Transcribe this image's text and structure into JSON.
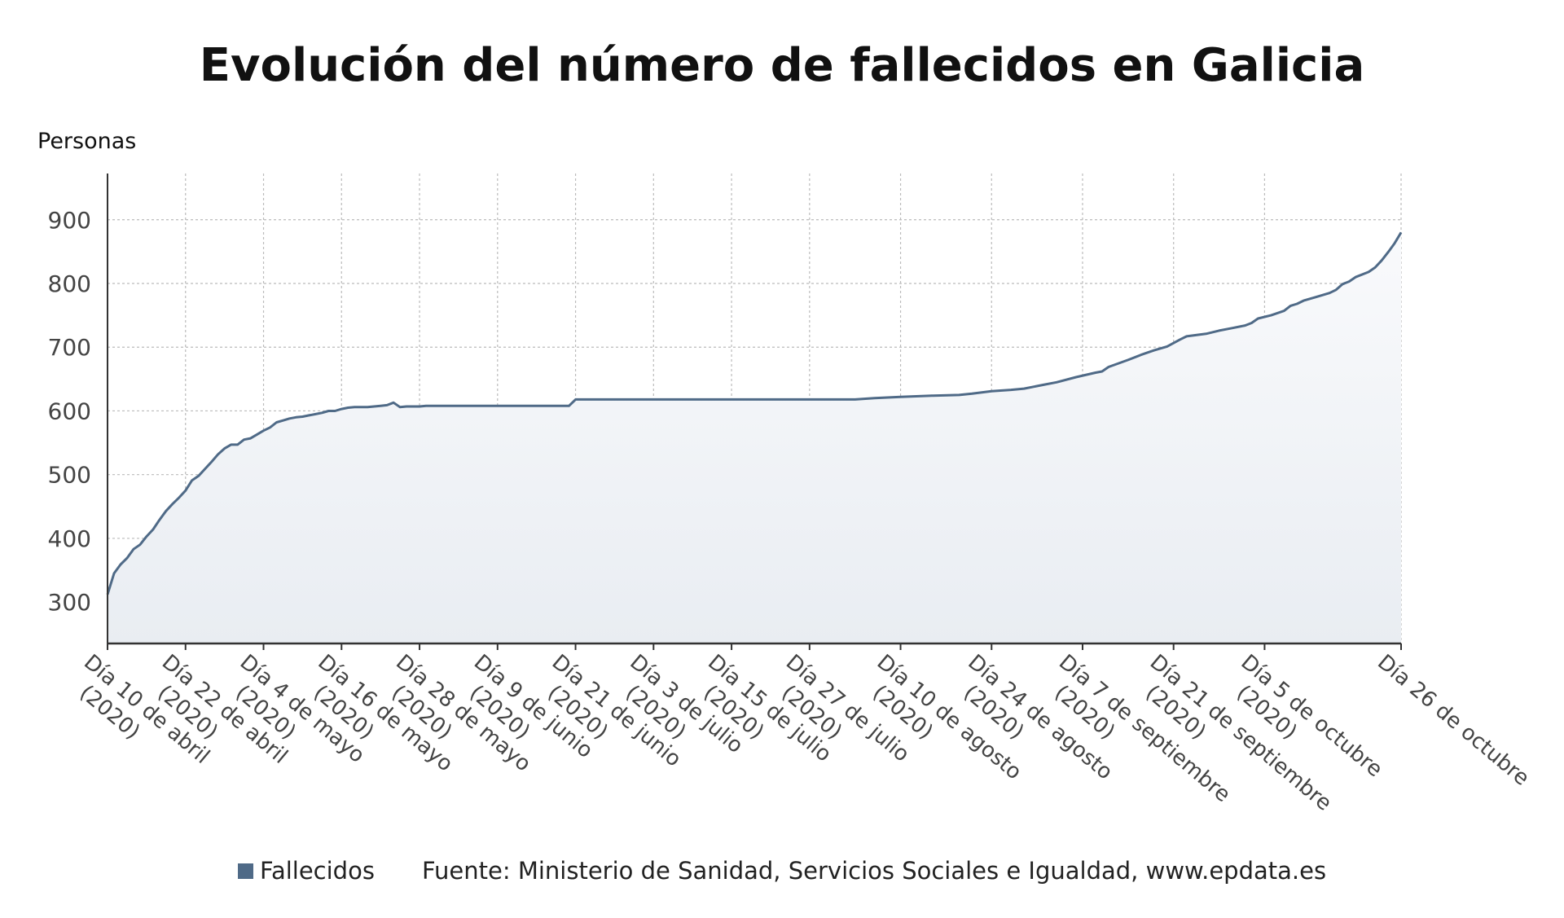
{
  "chart_data": {
    "type": "area",
    "title": "Evolución del número de fallecidos en Galicia",
    "ylabel": "Personas",
    "xlabel": "",
    "ylim": [
      235,
      970
    ],
    "yticks": [
      300,
      400,
      500,
      600,
      700,
      800,
      900
    ],
    "grid": true,
    "legend_position": "bottom",
    "colors": {
      "line": "#4f6a87",
      "fill_top": "#f9fafc",
      "fill_bottom": "#e9edf2",
      "grid": "#bbbbbb"
    },
    "x_start": "2020-04-10",
    "x_end": "2020-10-26",
    "x_tick_labels": [
      {
        "date": "2020-04-10",
        "lines": [
          "Día 10 de abril",
          "(2020)"
        ]
      },
      {
        "date": "2020-04-22",
        "lines": [
          "Día 22 de abril",
          "(2020)"
        ]
      },
      {
        "date": "2020-05-04",
        "lines": [
          "Día 4 de mayo",
          "(2020)"
        ]
      },
      {
        "date": "2020-05-16",
        "lines": [
          "Día 16 de mayo",
          "(2020)"
        ]
      },
      {
        "date": "2020-05-28",
        "lines": [
          "Día 28 de mayo",
          "(2020)"
        ]
      },
      {
        "date": "2020-06-09",
        "lines": [
          "Día 9 de junio",
          "(2020)"
        ]
      },
      {
        "date": "2020-06-21",
        "lines": [
          "Día 21 de junio",
          "(2020)"
        ]
      },
      {
        "date": "2020-07-03",
        "lines": [
          "Día 3 de julio",
          "(2020)"
        ]
      },
      {
        "date": "2020-07-15",
        "lines": [
          "Día 15 de julio",
          "(2020)"
        ]
      },
      {
        "date": "2020-07-27",
        "lines": [
          "Día 27 de julio",
          "(2020)"
        ]
      },
      {
        "date": "2020-08-10",
        "lines": [
          "Día 10 de agosto",
          "(2020)"
        ]
      },
      {
        "date": "2020-08-24",
        "lines": [
          "Día 24 de agosto",
          "(2020)"
        ]
      },
      {
        "date": "2020-09-07",
        "lines": [
          "Día 7 de septiembre",
          "(2020)"
        ]
      },
      {
        "date": "2020-09-21",
        "lines": [
          "Día 21 de septiembre",
          "(2020)"
        ]
      },
      {
        "date": "2020-10-05",
        "lines": [
          "Día 5 de octubre",
          "(2020)"
        ]
      },
      {
        "date": "2020-10-26",
        "lines": [
          "Día 26 de octubre"
        ]
      }
    ],
    "series": [
      {
        "name": "Fallecidos",
        "points": [
          [
            "2020-04-10",
            312
          ],
          [
            "2020-04-11",
            345
          ],
          [
            "2020-04-12",
            359
          ],
          [
            "2020-04-13",
            369
          ],
          [
            "2020-04-14",
            383
          ],
          [
            "2020-04-15",
            390
          ],
          [
            "2020-04-16",
            403
          ],
          [
            "2020-04-17",
            414
          ],
          [
            "2020-04-18",
            429
          ],
          [
            "2020-04-19",
            443
          ],
          [
            "2020-04-20",
            454
          ],
          [
            "2020-04-21",
            464
          ],
          [
            "2020-04-22",
            475
          ],
          [
            "2020-04-23",
            491
          ],
          [
            "2020-04-24",
            498
          ],
          [
            "2020-04-25",
            509
          ],
          [
            "2020-04-26",
            520
          ],
          [
            "2020-04-27",
            532
          ],
          [
            "2020-04-28",
            541
          ],
          [
            "2020-04-29",
            547
          ],
          [
            "2020-04-30",
            547
          ],
          [
            "2020-05-01",
            555
          ],
          [
            "2020-05-02",
            557
          ],
          [
            "2020-05-03",
            563
          ],
          [
            "2020-05-04",
            569
          ],
          [
            "2020-05-05",
            574
          ],
          [
            "2020-05-06",
            582
          ],
          [
            "2020-05-07",
            585
          ],
          [
            "2020-05-08",
            588
          ],
          [
            "2020-05-09",
            590
          ],
          [
            "2020-05-10",
            591
          ],
          [
            "2020-05-11",
            593
          ],
          [
            "2020-05-12",
            595
          ],
          [
            "2020-05-13",
            597
          ],
          [
            "2020-05-14",
            600
          ],
          [
            "2020-05-15",
            600
          ],
          [
            "2020-05-16",
            603
          ],
          [
            "2020-05-17",
            605
          ],
          [
            "2020-05-18",
            606
          ],
          [
            "2020-05-19",
            606
          ],
          [
            "2020-05-20",
            606
          ],
          [
            "2020-05-21",
            607
          ],
          [
            "2020-05-22",
            608
          ],
          [
            "2020-05-23",
            609
          ],
          [
            "2020-05-24",
            613
          ],
          [
            "2020-05-25",
            606
          ],
          [
            "2020-05-26",
            607
          ],
          [
            "2020-05-27",
            607
          ],
          [
            "2020-05-28",
            607
          ],
          [
            "2020-05-29",
            608
          ],
          [
            "2020-06-10",
            608
          ],
          [
            "2020-06-20",
            608
          ],
          [
            "2020-06-21",
            618
          ],
          [
            "2020-07-01",
            618
          ],
          [
            "2020-07-15",
            618
          ],
          [
            "2020-08-03",
            618
          ],
          [
            "2020-08-06",
            620
          ],
          [
            "2020-08-10",
            622
          ],
          [
            "2020-08-15",
            624
          ],
          [
            "2020-08-19",
            625
          ],
          [
            "2020-08-21",
            627
          ],
          [
            "2020-08-24",
            631
          ],
          [
            "2020-08-27",
            633
          ],
          [
            "2020-08-29",
            635
          ],
          [
            "2020-09-01",
            641
          ],
          [
            "2020-09-03",
            645
          ],
          [
            "2020-09-06",
            653
          ],
          [
            "2020-09-09",
            660
          ],
          [
            "2020-09-10",
            662
          ],
          [
            "2020-09-11",
            669
          ],
          [
            "2020-09-14",
            680
          ],
          [
            "2020-09-16",
            688
          ],
          [
            "2020-09-18",
            695
          ],
          [
            "2020-09-20",
            701
          ],
          [
            "2020-09-22",
            712
          ],
          [
            "2020-09-23",
            717
          ],
          [
            "2020-09-26",
            721
          ],
          [
            "2020-09-28",
            726
          ],
          [
            "2020-09-30",
            730
          ],
          [
            "2020-10-02",
            734
          ],
          [
            "2020-10-03",
            738
          ],
          [
            "2020-10-04",
            745
          ],
          [
            "2020-10-06",
            750
          ],
          [
            "2020-10-08",
            757
          ],
          [
            "2020-10-09",
            765
          ],
          [
            "2020-10-10",
            768
          ],
          [
            "2020-10-11",
            773
          ],
          [
            "2020-10-13",
            779
          ],
          [
            "2020-10-15",
            785
          ],
          [
            "2020-10-16",
            790
          ],
          [
            "2020-10-17",
            799
          ],
          [
            "2020-10-18",
            803
          ],
          [
            "2020-10-19",
            810
          ],
          [
            "2020-10-21",
            818
          ],
          [
            "2020-10-22",
            825
          ],
          [
            "2020-10-23",
            836
          ],
          [
            "2020-10-24",
            849
          ],
          [
            "2020-10-25",
            863
          ],
          [
            "2020-10-26",
            880
          ]
        ]
      }
    ]
  },
  "legend": {
    "series_label": "Fallecidos",
    "source": "Fuente: Ministerio de Sanidad, Servicios Sociales e Igualdad, www.epdata.es"
  }
}
